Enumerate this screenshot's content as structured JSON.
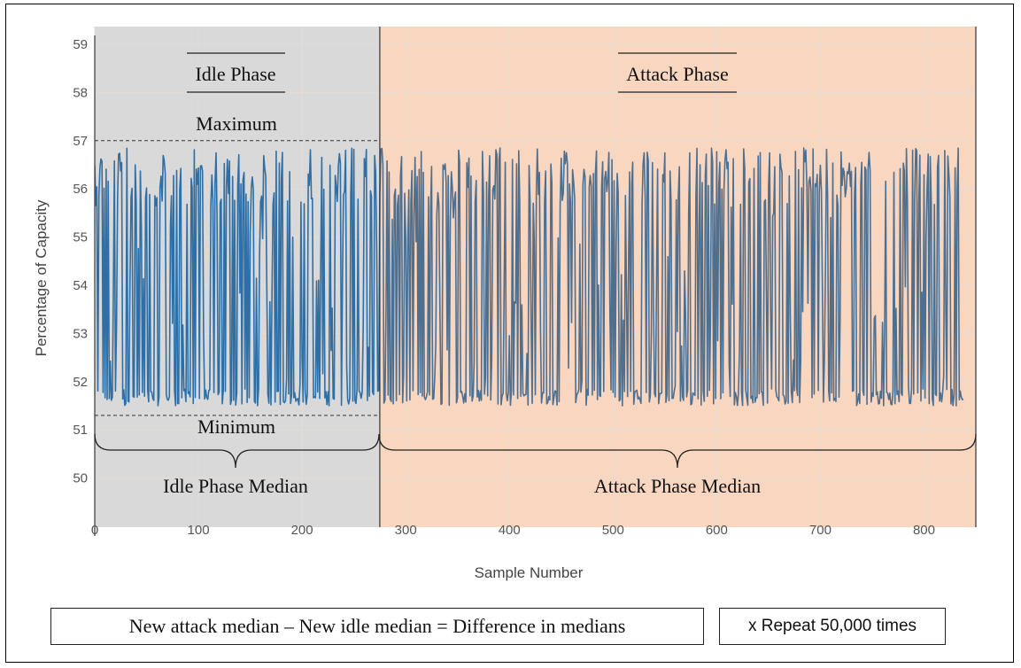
{
  "colors": {
    "idle_bg": "#d9d9d9",
    "attack_bg": "#f8d6c0",
    "idle_line": "#2f6fa5",
    "attack_line": "#4f6f8f",
    "grid": "#e4dcd6"
  },
  "annotations": {
    "idle_phase": "Idle Phase",
    "attack_phase": "Attack Phase",
    "maximum": "Maximum",
    "minimum": "Minimum",
    "idle_median": "Idle Phase Median",
    "attack_median": "Attack Phase Median"
  },
  "notes": {
    "formula": "New attack median – New idle median = Difference in medians",
    "repeat": "x Repeat 50,000 times"
  },
  "chart_data": {
    "type": "line",
    "xlabel": "Sample Number",
    "ylabel": "Percentage of Capacity",
    "xlim": [
      0,
      850
    ],
    "ylim": [
      49,
      59
    ],
    "x_ticks": [
      0,
      100,
      200,
      300,
      400,
      500,
      600,
      700,
      800
    ],
    "y_ticks": [
      50,
      51,
      52,
      53,
      54,
      55,
      56,
      57,
      58,
      59
    ],
    "grid": true,
    "phase_boundary_x": 275,
    "phases": [
      {
        "name": "Idle Phase",
        "x_range": [
          0,
          275
        ]
      },
      {
        "name": "Attack Phase",
        "x_range": [
          275,
          850
        ]
      }
    ],
    "maximum_y": 57.0,
    "minimum_y": 51.3,
    "series": [
      {
        "values_range": [
          51.5,
          56.85
        ],
        "x_range": [
          0,
          838
        ],
        "sample_count": 839
      }
    ]
  }
}
